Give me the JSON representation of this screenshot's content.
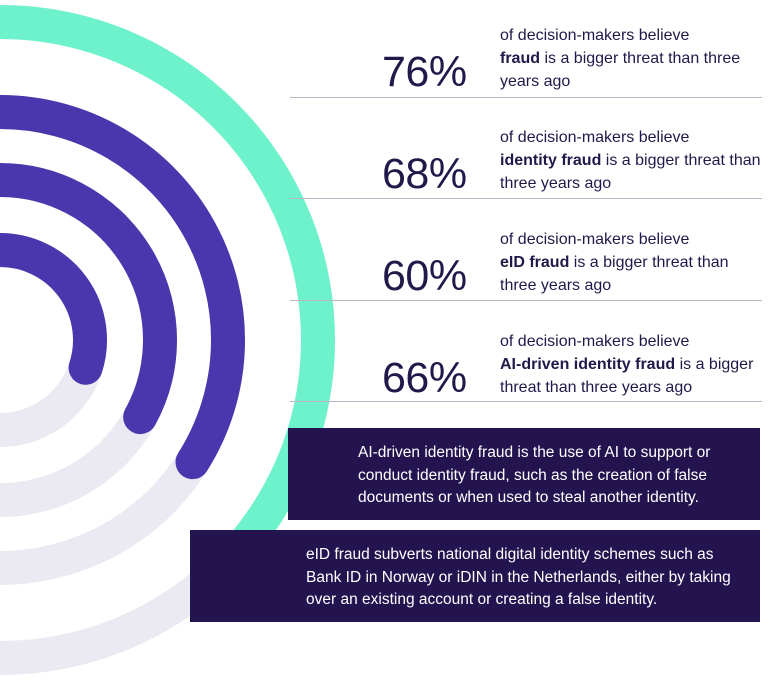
{
  "chart_data": {
    "type": "radial-bar",
    "unit": "%",
    "scale_max": 100,
    "values": [
      76,
      68,
      60,
      66
    ],
    "rows": [
      {
        "value": 76,
        "label": "76%",
        "text_before": "of decision-makers believe",
        "emphasis": "fraud",
        "text_after": "is a bigger threat than three years ago"
      },
      {
        "value": 68,
        "label": "68%",
        "text_before": "of decision-makers believe",
        "emphasis": "identity fraud",
        "text_after": "is a bigger threat than three years ago"
      },
      {
        "value": 60,
        "label": "60%",
        "text_before": "of decision-makers believe",
        "emphasis": "eID fraud",
        "text_after": "is a bigger threat than three years ago"
      },
      {
        "value": 66,
        "label": "66%",
        "text_before": "of decision-makers believe",
        "emphasis": "AI-driven identity fraud",
        "text_after": "is a bigger threat than three years ago"
      }
    ]
  },
  "colors": {
    "accent": "#6ef2cc",
    "bar": "#4a37ad",
    "track": "#ebe9f1",
    "text": "#1f1a4a",
    "rule": "#b9b6c6",
    "box": "#231450"
  },
  "definitions": [
    {
      "text": "AI-driven identity fraud is the use of AI to support or conduct identity fraud, such as the creation of false documents or when used to steal another identity."
    },
    {
      "text": "eID fraud subverts national digital identity schemes such as Bank ID in Norway or iDIN in the Netherlands, either by taking over an existing account or creating a false identity."
    }
  ]
}
